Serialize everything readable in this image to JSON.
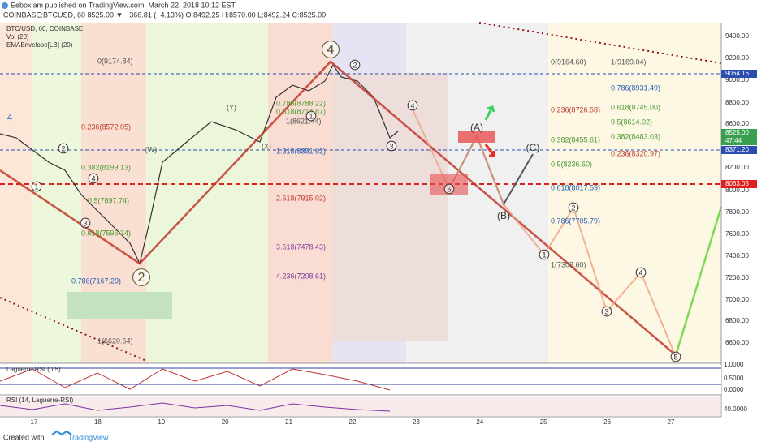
{
  "header": {
    "author_line": "Eeboxiam published on TradingView.com, March 22, 2018 10:12 EST",
    "symbol_line": "COINBASE:BTCUSD, 60  8525.00 ▼ −366.81 (−4.13%) O:8492.25 H:8570.00 L:8492.24 C:8525.00"
  },
  "legend": [
    "BTC/USD, 60, COINBASE",
    "Vol (20)",
    "EMAEnvelope[LB] (20)"
  ],
  "price_axis": [
    "9400.00",
    "9200.00",
    "9000.00",
    "8800.00",
    "8600.00",
    "8200.00",
    "8000.00",
    "7800.00",
    "7600.00",
    "7400.00",
    "7200.00",
    "7000.00",
    "6800.00",
    "6600.00"
  ],
  "price_tags": [
    "9064.16",
    "8525.00",
    "47:44",
    "8371.20",
    "8063.05"
  ],
  "date_axis": [
    "17",
    "18",
    "19",
    "20",
    "21",
    "22",
    "23",
    "24",
    "25",
    "26",
    "27"
  ],
  "fib_labels": [
    "0(9174.84)",
    "0.236(8572.05)",
    "0.382(8199.13)",
    "0.5(7897.74)",
    "0.618(7596.34)",
    "0.786(7167.29)",
    "1(6620.64)",
    "0.786(8788.22)",
    "0.618(8714.87)",
    "1(8621.44)",
    "1.618(8351.62)",
    "2.618(7915.02)",
    "3.618(7478.43)",
    "4.236(7208.61)",
    "0(9164.60)",
    "1(9169.04)",
    "0.786(8931.49)",
    "0.236(8726.58)",
    "0.618(8745.00)",
    "0.5(8614.02)",
    "0.382(8455.61)",
    "0.382(8483.03)",
    "0.236(8320.97)",
    "0.9(8236.60)",
    "0.618(8017.59)",
    "0.786(7705.79)",
    "1(7308.60)"
  ],
  "wave_labels": [
    "4",
    "2",
    "(A)",
    "(B)",
    "(C)",
    "4",
    "(Y)",
    "(W)",
    "(X)",
    "1",
    "2",
    "3",
    "4",
    "1",
    "2",
    "3",
    "4",
    "5",
    "1",
    "2",
    "3",
    "4",
    "5"
  ],
  "indicators": {
    "laguerre": {
      "title": "Laguerre-RSI (0.5)",
      "ticks": [
        "1.0000",
        "0.5000",
        "0.0000"
      ]
    },
    "rsi": {
      "title": "RSI (14, Laguerre-RSI)",
      "ticks": [
        "40.0000"
      ]
    }
  },
  "footer": {
    "created": "Created with",
    "brand": "TradingView"
  }
}
